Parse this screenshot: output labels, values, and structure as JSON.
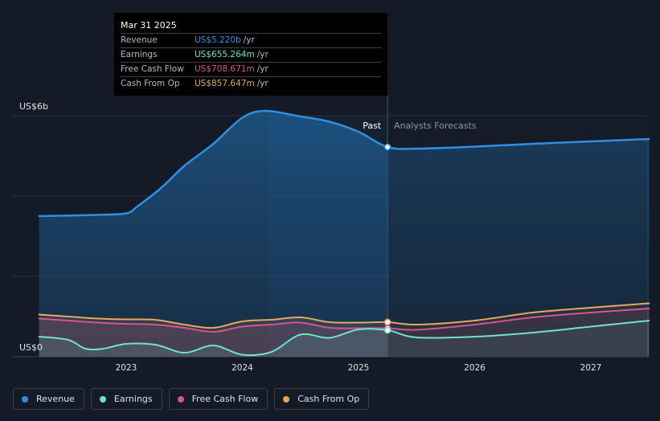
{
  "tooltip": {
    "date": "Mar 31 2025",
    "rows": [
      {
        "label": "Revenue",
        "value": "US$5.220b",
        "unit": "/yr",
        "color": "#2f8fe6"
      },
      {
        "label": "Earnings",
        "value": "US$655.264m",
        "unit": "/yr",
        "color": "#6fe3c9"
      },
      {
        "label": "Free Cash Flow",
        "value": "US$708.671m",
        "unit": "/yr",
        "color": "#d9548e"
      },
      {
        "label": "Cash From Op",
        "value": "US$857.647m",
        "unit": "/yr",
        "color": "#e8a85a"
      }
    ]
  },
  "legend": [
    {
      "label": "Revenue",
      "color": "#2f8fe6"
    },
    {
      "label": "Earnings",
      "color": "#6fe3c9"
    },
    {
      "label": "Free Cash Flow",
      "color": "#d9548e"
    },
    {
      "label": "Cash From Op",
      "color": "#e8a85a"
    }
  ],
  "chart_data": {
    "type": "line",
    "ylabel_top": "US$6b",
    "ylabel_bottom": "US$0",
    "ylim": [
      0,
      6
    ],
    "x_ticks": [
      2023,
      2024,
      2025,
      2026,
      2027
    ],
    "xlim": [
      2022.25,
      2027.5
    ],
    "divider_x": 2025.25,
    "past_label": "Past",
    "forecast_label": "Analysts Forecasts",
    "series": [
      {
        "name": "Revenue",
        "color": "#2f8fe6",
        "points": [
          [
            2022.25,
            3.5
          ],
          [
            2022.75,
            3.53
          ],
          [
            2023.0,
            3.57
          ],
          [
            2023.1,
            3.75
          ],
          [
            2023.3,
            4.2
          ],
          [
            2023.5,
            4.75
          ],
          [
            2023.75,
            5.3
          ],
          [
            2024.0,
            5.95
          ],
          [
            2024.2,
            6.12
          ],
          [
            2024.5,
            5.98
          ],
          [
            2024.75,
            5.85
          ],
          [
            2025.0,
            5.6
          ],
          [
            2025.25,
            5.22
          ],
          [
            2025.5,
            5.18
          ],
          [
            2026.0,
            5.23
          ],
          [
            2026.5,
            5.3
          ],
          [
            2027.0,
            5.36
          ],
          [
            2027.5,
            5.42
          ]
        ],
        "marker": [
          2025.25,
          5.22
        ]
      },
      {
        "name": "Cash From Op",
        "color": "#e8a85a",
        "points": [
          [
            2022.25,
            1.05
          ],
          [
            2022.5,
            1.0
          ],
          [
            2022.75,
            0.95
          ],
          [
            2023.0,
            0.93
          ],
          [
            2023.25,
            0.92
          ],
          [
            2023.5,
            0.8
          ],
          [
            2023.75,
            0.72
          ],
          [
            2024.0,
            0.88
          ],
          [
            2024.25,
            0.92
          ],
          [
            2024.5,
            0.98
          ],
          [
            2024.75,
            0.86
          ],
          [
            2025.0,
            0.85
          ],
          [
            2025.25,
            0.86
          ],
          [
            2025.5,
            0.8
          ],
          [
            2026.0,
            0.9
          ],
          [
            2026.5,
            1.1
          ],
          [
            2027.0,
            1.22
          ],
          [
            2027.5,
            1.33
          ]
        ],
        "marker": [
          2025.25,
          0.86
        ]
      },
      {
        "name": "Free Cash Flow",
        "color": "#d9548e",
        "points": [
          [
            2022.25,
            0.95
          ],
          [
            2022.5,
            0.9
          ],
          [
            2022.75,
            0.85
          ],
          [
            2023.0,
            0.82
          ],
          [
            2023.25,
            0.8
          ],
          [
            2023.5,
            0.72
          ],
          [
            2023.75,
            0.62
          ],
          [
            2024.0,
            0.75
          ],
          [
            2024.25,
            0.8
          ],
          [
            2024.5,
            0.85
          ],
          [
            2024.75,
            0.72
          ],
          [
            2025.0,
            0.71
          ],
          [
            2025.25,
            0.71
          ],
          [
            2025.5,
            0.67
          ],
          [
            2026.0,
            0.8
          ],
          [
            2026.5,
            0.98
          ],
          [
            2027.0,
            1.1
          ],
          [
            2027.5,
            1.2
          ]
        ],
        "marker": [
          2025.25,
          0.71
        ]
      },
      {
        "name": "Earnings",
        "color": "#6fe3c9",
        "points": [
          [
            2022.25,
            0.5
          ],
          [
            2022.5,
            0.42
          ],
          [
            2022.65,
            0.2
          ],
          [
            2022.8,
            0.2
          ],
          [
            2023.0,
            0.32
          ],
          [
            2023.25,
            0.3
          ],
          [
            2023.5,
            0.1
          ],
          [
            2023.75,
            0.28
          ],
          [
            2024.0,
            0.05
          ],
          [
            2024.25,
            0.12
          ],
          [
            2024.5,
            0.55
          ],
          [
            2024.75,
            0.47
          ],
          [
            2025.0,
            0.68
          ],
          [
            2025.25,
            0.66
          ],
          [
            2025.5,
            0.48
          ],
          [
            2026.0,
            0.5
          ],
          [
            2026.5,
            0.6
          ],
          [
            2027.0,
            0.75
          ],
          [
            2027.5,
            0.9
          ]
        ],
        "marker": [
          2025.25,
          0.66
        ]
      }
    ]
  }
}
